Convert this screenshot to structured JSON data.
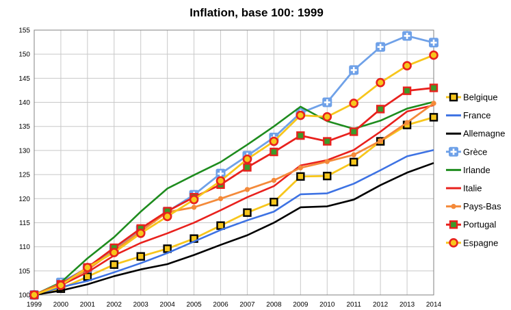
{
  "chart_data": {
    "type": "line",
    "title": "Inflation, base 100: 1999",
    "xlabel": "",
    "ylabel": "",
    "x": [
      "1999",
      "2000",
      "2001",
      "2002",
      "2003",
      "2004",
      "2005",
      "2006",
      "2007",
      "2008",
      "2009",
      "2010",
      "2011",
      "2012",
      "2013",
      "2014"
    ],
    "ylim": [
      100,
      155
    ],
    "yticks": [
      "100",
      "105",
      "110",
      "115",
      "120",
      "125",
      "130",
      "135",
      "140",
      "145",
      "150",
      "155"
    ],
    "grid": true,
    "legend_position": "right",
    "series": [
      {
        "name": "Belgique",
        "color": "#f7c61c",
        "marker": "square",
        "marker_fill": "#f7c61c",
        "marker_edge": "#000000",
        "values": [
          100,
          101.3,
          103.8,
          106.3,
          108.0,
          109.6,
          111.7,
          114.4,
          117.1,
          119.3,
          124.6,
          124.7,
          127.6,
          131.9,
          135.3,
          136.9
        ]
      },
      {
        "name": "France",
        "color": "#3d72e3",
        "marker": "none",
        "values": [
          100,
          101.6,
          102.9,
          104.7,
          106.6,
          108.7,
          111.1,
          113.5,
          115.5,
          117.3,
          120.9,
          121.1,
          123.1,
          125.9,
          128.8,
          130.1
        ]
      },
      {
        "name": "Allemagne",
        "color": "#000000",
        "marker": "none",
        "values": [
          100,
          100.9,
          102.2,
          103.9,
          105.3,
          106.4,
          108.3,
          110.4,
          112.4,
          115.0,
          118.2,
          118.4,
          119.8,
          122.8,
          125.4,
          127.4
        ]
      },
      {
        "name": "Grèce",
        "color": "#6fa1e8",
        "marker": "plus",
        "marker_fill": "#6fa1e8",
        "marker_edge": "#ffffff",
        "values": [
          100,
          102.6,
          105.6,
          109.6,
          113.6,
          117.3,
          120.8,
          125.2,
          128.9,
          132.7,
          137.8,
          140.0,
          146.7,
          151.5,
          153.8,
          152.4
        ]
      },
      {
        "name": "Irlande",
        "color": "#1e8c1e",
        "marker": "none",
        "values": [
          100,
          102.6,
          107.6,
          112.0,
          117.3,
          122.1,
          124.9,
          127.6,
          131.2,
          135.0,
          139.1,
          136.1,
          134.5,
          136.2,
          138.7,
          140.1
        ]
      },
      {
        "name": "Italie",
        "color": "#e8211d",
        "marker": "none",
        "values": [
          100,
          102.0,
          104.7,
          108.2,
          110.8,
          112.8,
          115.0,
          117.6,
          120.3,
          122.6,
          126.9,
          128.0,
          130.1,
          133.9,
          138.1,
          139.4
        ]
      },
      {
        "name": "Pays-Bas",
        "color": "#f48a3a",
        "marker": "dot",
        "marker_fill": "#f48a3a",
        "marker_edge": "#f48a3a",
        "values": [
          100,
          102.4,
          105.2,
          109.2,
          113.2,
          117.2,
          118.2,
          120.0,
          121.9,
          123.8,
          126.4,
          127.7,
          129.1,
          132.0,
          135.8,
          139.8
        ]
      },
      {
        "name": "Portugal",
        "color": "#e8211d",
        "marker": "square",
        "marker_fill": "#3c9a2a",
        "marker_edge": "#e8211d",
        "values": [
          100,
          102.2,
          105.7,
          109.8,
          113.8,
          117.4,
          120.3,
          122.9,
          126.5,
          129.7,
          133.1,
          131.9,
          133.9,
          138.6,
          142.4,
          143.0
        ]
      },
      {
        "name": "Espagne",
        "color": "#f7c61c",
        "marker": "circle",
        "marker_fill": "#f7c61c",
        "marker_edge": "#e8211d",
        "values": [
          100,
          102.0,
          105.7,
          108.8,
          112.8,
          116.3,
          119.8,
          123.7,
          128.2,
          131.9,
          137.3,
          137.0,
          139.8,
          144.1,
          147.6,
          149.8
        ]
      }
    ]
  }
}
